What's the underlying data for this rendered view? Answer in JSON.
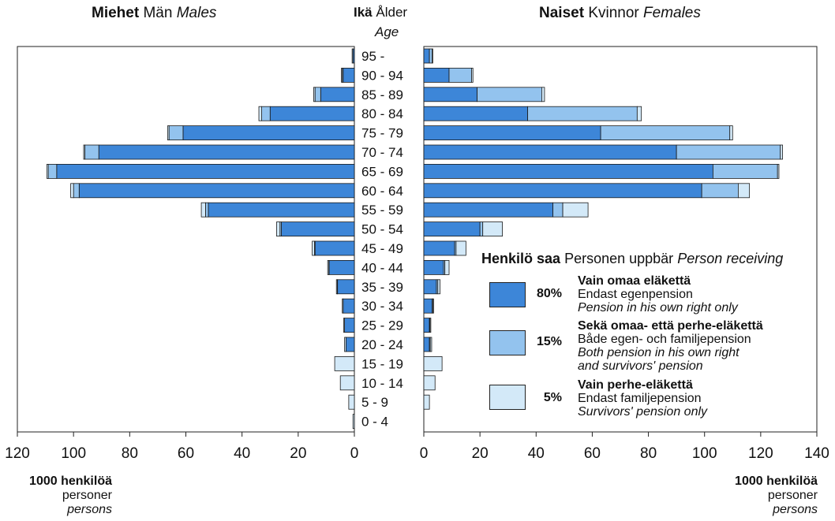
{
  "header": {
    "left_bold": "Miehet",
    "left_plain": "Män",
    "left_italic": "Males",
    "center_bold": "Ikä",
    "center_plain": "Ålder",
    "center_italic": "Age",
    "right_bold": "Naiset",
    "right_plain": "Kvinnor",
    "right_italic": "Females"
  },
  "units": {
    "left": {
      "bold": "1000 henkilöä",
      "line2": "personer",
      "line3": "persons"
    },
    "right": {
      "bold": "1000 henkilöä",
      "line2": "personer",
      "line3": "persons"
    }
  },
  "legend": {
    "title_bold": "Henkilö saa",
    "title_plain": "Personen uppbär",
    "title_italic": "Person receiving",
    "items": [
      {
        "pct": "80%",
        "fi": "Vain omaa eläkettä",
        "sv": "Endast egenpension",
        "en1": "Pension in his own right only",
        "en2": "",
        "color": "#3d86d8"
      },
      {
        "pct": "15%",
        "fi": "Sekä omaa- että perhe-eläkettä",
        "sv": "Både egen- och familjepension",
        "en1": "Both pension in his own right",
        "en2": "and survivors' pension",
        "color": "#93c3ee"
      },
      {
        "pct": "5%",
        "fi": "Vain perhe-eläkettä",
        "sv": "Endast familjepension",
        "en1": "Survivors' pension only",
        "en2": "",
        "color": "#d3e9f8"
      }
    ]
  },
  "chart_data": {
    "type": "bar",
    "orientation": "horizontal",
    "stacked": true,
    "age_groups": [
      "95 -",
      "90 - 94",
      "85 - 89",
      "80 - 84",
      "75 - 79",
      "70 - 74",
      "65 - 69",
      "60 - 64",
      "55 - 59",
      "50 - 54",
      "45 - 49",
      "40 - 44",
      "35 - 39",
      "30 - 34",
      "25 - 29",
      "20 - 24",
      "15 - 19",
      "10 - 14",
      "5 - 9",
      "0 - 4"
    ],
    "x_ticks_males": [
      "120",
      "100",
      "80",
      "60",
      "40",
      "20",
      "0"
    ],
    "x_ticks_females": [
      "0",
      "20",
      "40",
      "60",
      "80",
      "100",
      "120",
      "140"
    ],
    "males_xlim": [
      0,
      120
    ],
    "females_xlim": [
      0,
      140
    ],
    "series_colors": [
      "#3d86d8",
      "#93c3ee",
      "#d3e9f8"
    ],
    "males": {
      "own_only": [
        0.5,
        4,
        12,
        30,
        61,
        91,
        106,
        98,
        52,
        26,
        14,
        9,
        6,
        4,
        3.5,
        3,
        0,
        0,
        0,
        0
      ],
      "both": [
        0,
        0.3,
        2,
        3,
        5,
        5,
        3,
        2,
        1,
        0.5,
        0.2,
        0.1,
        0.1,
        0,
        0,
        0,
        0,
        0,
        0,
        0
      ],
      "survivors_only": [
        0.3,
        0.3,
        0.5,
        1,
        0.5,
        0.4,
        0.5,
        1,
        1.5,
        1.2,
        0.8,
        0.4,
        0.3,
        0.3,
        0.3,
        0.5,
        7,
        5,
        2,
        0.5
      ]
    },
    "females": {
      "own_only": [
        2,
        9,
        19,
        37,
        63,
        90,
        103,
        99,
        46,
        20,
        11,
        7,
        4.5,
        3,
        2,
        2,
        0,
        0,
        0,
        0
      ],
      "both": [
        1,
        8,
        23,
        39,
        46,
        37,
        23,
        13,
        3.5,
        1,
        0.5,
        0.5,
        0.5,
        0.2,
        0.2,
        0.3,
        0,
        0,
        0,
        0
      ],
      "survivors_only": [
        0.2,
        0.5,
        1,
        1.5,
        1,
        0.8,
        0.5,
        4,
        9,
        7,
        3.5,
        1.5,
        0.8,
        0.3,
        0.3,
        0.5,
        6.5,
        4,
        2,
        0
      ]
    }
  }
}
